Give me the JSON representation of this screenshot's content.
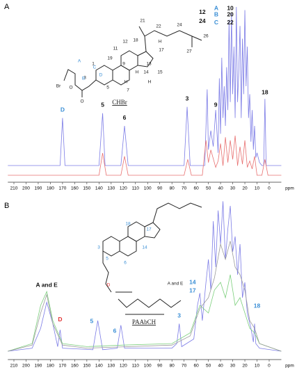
{
  "chart_data": [
    {
      "type": "spectrum",
      "panel": "A",
      "xlabel": "ppm",
      "xlim": [
        215,
        -10
      ],
      "xticks": [
        210,
        200,
        190,
        180,
        170,
        160,
        150,
        140,
        130,
        120,
        110,
        100,
        90,
        80,
        70,
        60,
        50,
        40,
        30,
        20,
        10,
        0
      ],
      "series": [
        {
          "color": "#7b7be6",
          "x": [
            215,
            172,
            170,
            168,
            140,
            137,
            135,
            122,
            119,
            116,
            70,
            67.5,
            65,
            53,
            51,
            50,
            48,
            46,
            44,
            42,
            41,
            40,
            39,
            38,
            37,
            36,
            35,
            34,
            33,
            32,
            31,
            30,
            29,
            28,
            27,
            26,
            25,
            24,
            23,
            22,
            21,
            20,
            19,
            18,
            17,
            16,
            15,
            14,
            13,
            12,
            11,
            10,
            8,
            6,
            4.5,
            3.5,
            2.5,
            -10
          ],
          "values": [
            0,
            0,
            30,
            0,
            0,
            33,
            0,
            0,
            25,
            0,
            0,
            37,
            0,
            0,
            48,
            10,
            22,
            12,
            35,
            8,
            55,
            20,
            68,
            30,
            50,
            25,
            62,
            35,
            92,
            40,
            96,
            45,
            75,
            30,
            100,
            40,
            60,
            88,
            30,
            80,
            45,
            98,
            50,
            75,
            30,
            45,
            15,
            35,
            10,
            25,
            5,
            8,
            2,
            0,
            0,
            42,
            0,
            0
          ]
        },
        {
          "color": "#e87070",
          "x": [
            215,
            140,
            137,
            134,
            122,
            119,
            116,
            70,
            67,
            64,
            55,
            52,
            50,
            48,
            44,
            42,
            40,
            38,
            36,
            34,
            32,
            30,
            28,
            26,
            24,
            22,
            20,
            18,
            16,
            14,
            12,
            10,
            6,
            3.5,
            1,
            -10
          ],
          "values": [
            0,
            0,
            14,
            0,
            0,
            12,
            0,
            0,
            10,
            0,
            0,
            22,
            8,
            16,
            5,
            9,
            20,
            6,
            24,
            8,
            22,
            10,
            25,
            6,
            18,
            7,
            22,
            5,
            9,
            4,
            12,
            0,
            0,
            10,
            0,
            0
          ]
        }
      ],
      "annotations": [
        {
          "text": "D",
          "x": 170,
          "y": 35,
          "color": "#3b8fd6"
        },
        {
          "text": "5",
          "x": 137,
          "y": 38,
          "color": "#111111"
        },
        {
          "text": "6",
          "x": 119,
          "y": 30,
          "color": "#111111"
        },
        {
          "text": "3",
          "x": 67.5,
          "y": 42,
          "color": "#111111"
        },
        {
          "text": "9",
          "x": 44,
          "y": 38,
          "color": "#111111"
        },
        {
          "text": "18",
          "x": 3.5,
          "y": 46,
          "color": "#111111"
        },
        {
          "text": "12",
          "x": 55,
          "y": 96.5,
          "color": "#111111"
        },
        {
          "text": "24",
          "x": 55,
          "y": 91,
          "color": "#111111"
        },
        {
          "text": "A",
          "x": 43.5,
          "y": 99,
          "color": "#3b8fd6"
        },
        {
          "text": "B",
          "x": 43.5,
          "y": 95,
          "color": "#3b8fd6"
        },
        {
          "text": "C",
          "x": 43.5,
          "y": 90,
          "color": "#3b8fd6"
        },
        {
          "text": "10",
          "x": 32,
          "y": 99,
          "color": "#111111"
        },
        {
          "text": "20",
          "x": 32,
          "y": 95,
          "color": "#111111"
        },
        {
          "text": "22",
          "x": 32,
          "y": 90,
          "color": "#111111"
        }
      ],
      "structure_labels": [
        "21",
        "22",
        "24",
        "26",
        "27",
        "18",
        "12",
        "17",
        "11",
        "13",
        "19",
        "1",
        "9",
        "14",
        "15",
        "3",
        "5",
        "7",
        "H",
        "H",
        "H",
        "H",
        "Br",
        "A",
        "B",
        "C",
        "D",
        "O",
        "O",
        "CHBr"
      ]
    },
    {
      "type": "spectrum",
      "panel": "B",
      "xlabel": "ppm",
      "xlim": [
        215,
        -10
      ],
      "xticks": [
        210,
        200,
        190,
        180,
        170,
        160,
        150,
        140,
        130,
        120,
        110,
        100,
        90,
        80,
        70,
        60,
        50,
        40,
        30,
        20,
        10,
        0
      ],
      "series": [
        {
          "color": "#7b7be6",
          "x": [
            215,
            195,
            188,
            183,
            178,
            174,
            172,
            170,
            145,
            141,
            137,
            125,
            122,
            119,
            80,
            76,
            74,
            72,
            62,
            59,
            57,
            55,
            52,
            50,
            48,
            46,
            44,
            42,
            40,
            38,
            36,
            34,
            32,
            30,
            28,
            26,
            24,
            22,
            20,
            18,
            15,
            13,
            12,
            11,
            8,
            -10
          ],
          "values": [
            0,
            2,
            15,
            32,
            18,
            3,
            14,
            2,
            1,
            20,
            1,
            2,
            17,
            2,
            2,
            5,
            18,
            3,
            8,
            30,
            38,
            20,
            45,
            60,
            40,
            85,
            55,
            92,
            70,
            98,
            60,
            80,
            95,
            65,
            75,
            50,
            70,
            35,
            45,
            25,
            15,
            6,
            18,
            5,
            2,
            0
          ]
        },
        {
          "color": "#7ccf7c",
          "x": [
            215,
            195,
            188,
            183,
            178,
            170,
            150,
            120,
            80,
            65,
            57,
            50,
            45,
            40,
            36,
            32,
            28,
            24,
            20,
            16,
            12,
            8,
            -10
          ],
          "values": [
            0,
            5,
            30,
            39,
            20,
            5,
            3,
            4,
            5,
            12,
            30,
            25,
            40,
            45,
            35,
            50,
            30,
            35,
            25,
            15,
            12,
            5,
            0
          ]
        },
        {
          "color": "#9a9a9a",
          "x": [
            215,
            195,
            188,
            183,
            178,
            170,
            150,
            80,
            65,
            57,
            50,
            45,
            40,
            36,
            32,
            28,
            24,
            20,
            16,
            12,
            8,
            -10
          ],
          "values": [
            0,
            4,
            25,
            37,
            18,
            4,
            2,
            4,
            10,
            28,
            35,
            48,
            70,
            60,
            72,
            55,
            50,
            40,
            20,
            15,
            5,
            0
          ]
        }
      ],
      "annotations": [
        {
          "text": "A and E",
          "x": 183,
          "y": 43,
          "color": "#111111"
        },
        {
          "text": "D",
          "x": 172,
          "y": 20.5,
          "color": "#e03030"
        },
        {
          "text": "5",
          "x": 146,
          "y": 19.5,
          "color": "#3b8fd6"
        },
        {
          "text": "6",
          "x": 127,
          "y": 13,
          "color": "#3b8fd6"
        },
        {
          "text": "3",
          "x": 74,
          "y": 23,
          "color": "#3b8fd6"
        },
        {
          "text": "14",
          "x": 63,
          "y": 45,
          "color": "#3b8fd6"
        },
        {
          "text": "17",
          "x": 63,
          "y": 39.5,
          "color": "#3b8fd6"
        },
        {
          "text": "18",
          "x": 10,
          "y": 29.5,
          "color": "#3b8fd6"
        }
      ],
      "structure_labels": [
        "18",
        "17",
        "14",
        "3",
        "5",
        "6",
        "D",
        "A and E",
        "PAAbCH"
      ]
    }
  ]
}
